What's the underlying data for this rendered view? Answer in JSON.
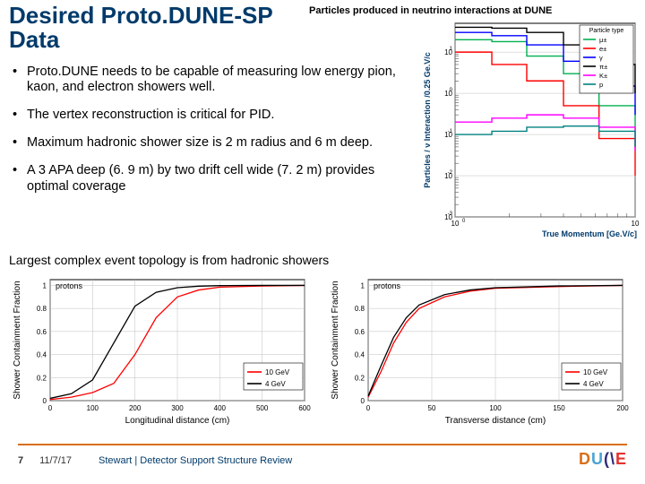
{
  "title": "Desired Proto.DUNE-SP Data",
  "topChartTitle": "Particles produced in neutrino interactions at DUNE",
  "bullets": [
    "Proto.DUNE needs to be capable of measuring low energy pion, kaon, and electron showers well.",
    "The vertex reconstruction is critical for PID.",
    "Maximum hadronic shower size is 2 m radius and 6 m deep.",
    "A 3 APA deep (6. 9 m) by two drift cell wide (7. 2 m) provides optimal coverage"
  ],
  "largestLine": "Largest complex event topology is from hadronic showers",
  "footer": {
    "page": "7",
    "date": "11/7/17",
    "author": "Stewart  |  Detector Support Structure Review"
  },
  "topChart": {
    "type": "line-loglog",
    "xlabel": "True Momentum [Ge.V/c]",
    "ylabel": "Particles / ν Interaction /0.25 Ge.V/c",
    "legend_title": "Particle type",
    "xlim": [
      1,
      10
    ],
    "ylim": [
      0.001,
      50
    ],
    "ytick_exp": [
      1,
      0,
      -1,
      -2,
      -3
    ],
    "xtick_vals": [
      1,
      10
    ],
    "grid_color": "#bfbfbf",
    "bg": "#ffffff",
    "series": [
      {
        "name": "μ±",
        "color": "#00b050",
        "data": [
          [
            1.0,
            20
          ],
          [
            1.6,
            18
          ],
          [
            2.5,
            8
          ],
          [
            4.0,
            3
          ],
          [
            6.3,
            0.5
          ],
          [
            10,
            0.05
          ]
        ]
      },
      {
        "name": "e±",
        "color": "#ff0000",
        "data": [
          [
            1.0,
            10
          ],
          [
            1.6,
            5
          ],
          [
            2.5,
            2
          ],
          [
            4.0,
            0.5
          ],
          [
            6.3,
            0.08
          ],
          [
            10,
            0.01
          ]
        ]
      },
      {
        "name": "γ",
        "color": "#0000ff",
        "data": [
          [
            1.0,
            30
          ],
          [
            1.6,
            25
          ],
          [
            2.5,
            15
          ],
          [
            4.0,
            6
          ],
          [
            6.3,
            1.5
          ],
          [
            10,
            0.3
          ]
        ]
      },
      {
        "name": "π±",
        "color": "#000000",
        "data": [
          [
            1.0,
            40
          ],
          [
            1.6,
            38
          ],
          [
            2.5,
            30
          ],
          [
            4.0,
            15
          ],
          [
            6.3,
            5
          ],
          [
            10,
            1.0
          ]
        ]
      },
      {
        "name": "K±",
        "color": "#ff00ff",
        "data": [
          [
            1.0,
            0.2
          ],
          [
            1.6,
            0.25
          ],
          [
            2.5,
            0.3
          ],
          [
            4.0,
            0.25
          ],
          [
            6.3,
            0.15
          ],
          [
            10,
            0.04
          ]
        ]
      },
      {
        "name": "p",
        "color": "#008080",
        "data": [
          [
            1.0,
            0.1
          ],
          [
            1.6,
            0.12
          ],
          [
            2.5,
            0.15
          ],
          [
            4.0,
            0.16
          ],
          [
            6.3,
            0.12
          ],
          [
            10,
            0.05
          ]
        ]
      }
    ]
  },
  "longChart": {
    "type": "line",
    "title": "protons",
    "xlabel": "Longitudinal distance (cm)",
    "ylabel": "Shower Containment Fraction",
    "xlim": [
      0,
      600
    ],
    "xtick_step": 100,
    "ylim": [
      0,
      1.05
    ],
    "yticks": [
      0,
      0.2,
      0.4,
      0.6,
      0.8,
      1
    ],
    "grid_color": "#bfbfbf",
    "series": [
      {
        "name": "10 GeV",
        "color": "#ff0000",
        "data": [
          [
            0,
            0.01
          ],
          [
            50,
            0.03
          ],
          [
            100,
            0.07
          ],
          [
            150,
            0.15
          ],
          [
            200,
            0.4
          ],
          [
            250,
            0.72
          ],
          [
            300,
            0.9
          ],
          [
            350,
            0.96
          ],
          [
            400,
            0.985
          ],
          [
            500,
            0.995
          ],
          [
            600,
            1.0
          ]
        ]
      },
      {
        "name": "4 GeV",
        "color": "#000000",
        "data": [
          [
            0,
            0.02
          ],
          [
            50,
            0.06
          ],
          [
            100,
            0.18
          ],
          [
            150,
            0.5
          ],
          [
            200,
            0.82
          ],
          [
            250,
            0.94
          ],
          [
            300,
            0.98
          ],
          [
            350,
            0.993
          ],
          [
            400,
            0.998
          ],
          [
            500,
            1.0
          ],
          [
            600,
            1.0
          ]
        ]
      }
    ]
  },
  "transChart": {
    "type": "line",
    "title": "protons",
    "xlabel": "Transverse distance (cm)",
    "ylabel": "Shower Containment Fraction",
    "xlim": [
      0,
      200
    ],
    "xtick_step": 50,
    "ylim": [
      0,
      1.05
    ],
    "yticks": [
      0,
      0.2,
      0.4,
      0.6,
      0.8,
      1
    ],
    "grid_color": "#bfbfbf",
    "series": [
      {
        "name": "10 GeV",
        "color": "#ff0000",
        "data": [
          [
            0,
            0.03
          ],
          [
            10,
            0.25
          ],
          [
            20,
            0.5
          ],
          [
            30,
            0.68
          ],
          [
            40,
            0.8
          ],
          [
            60,
            0.9
          ],
          [
            80,
            0.95
          ],
          [
            100,
            0.975
          ],
          [
            150,
            0.99
          ],
          [
            200,
            1.0
          ]
        ]
      },
      {
        "name": "4 GeV",
        "color": "#000000",
        "data": [
          [
            0,
            0.04
          ],
          [
            10,
            0.3
          ],
          [
            20,
            0.55
          ],
          [
            30,
            0.72
          ],
          [
            40,
            0.83
          ],
          [
            60,
            0.92
          ],
          [
            80,
            0.96
          ],
          [
            100,
            0.98
          ],
          [
            150,
            0.995
          ],
          [
            200,
            1.0
          ]
        ]
      }
    ]
  }
}
